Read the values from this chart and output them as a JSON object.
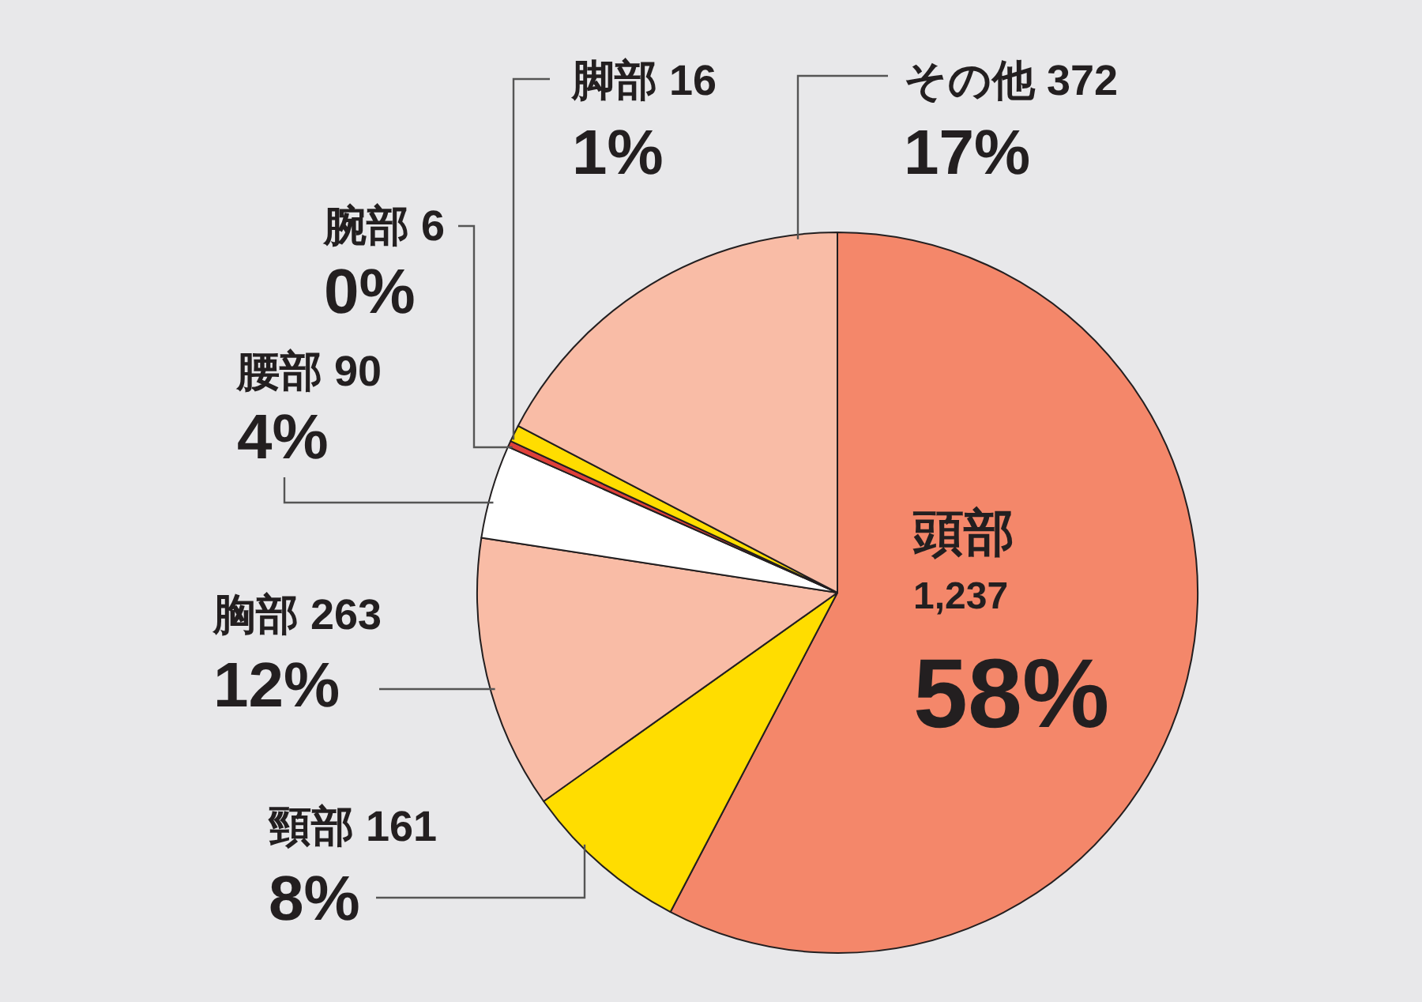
{
  "chart_data": {
    "type": "pie",
    "categories": [
      "頭部",
      "頸部",
      "胸部",
      "腰部",
      "腕部",
      "脚部",
      "その他"
    ],
    "values": [
      1237,
      161,
      263,
      90,
      6,
      16,
      372
    ],
    "value_labels": [
      "1,237",
      "161",
      "263",
      "90",
      "6",
      "16",
      "372"
    ],
    "colors": [
      "#f4876a",
      "#ffdd00",
      "#f9bca6",
      "#ffffff",
      "#e0403a",
      "#ffdd00",
      "#f9bca6"
    ],
    "annotations": [
      "58%",
      "8%",
      "12%",
      "4%",
      "0%",
      "1%",
      "17%"
    ]
  }
}
